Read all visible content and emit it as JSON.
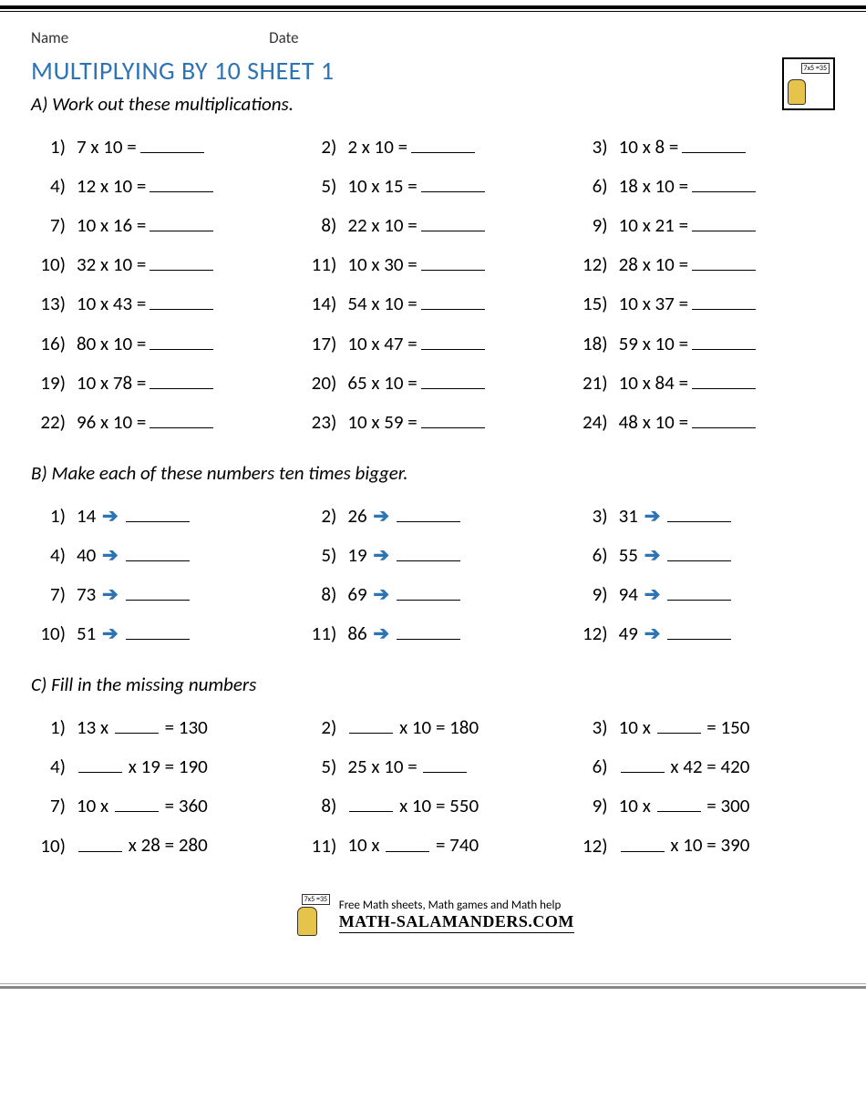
{
  "meta": {
    "name_label": "Name",
    "date_label": "Date"
  },
  "title": "MULTIPLYING BY 10 SHEET 1",
  "sectionA": {
    "instruction": "A) Work out these multiplications.",
    "items": [
      {
        "n": "1)",
        "e": "7 x 10 ="
      },
      {
        "n": "2)",
        "e": "2 x 10 ="
      },
      {
        "n": "3)",
        "e": "10 x 8 ="
      },
      {
        "n": "4)",
        "e": "12 x 10 ="
      },
      {
        "n": "5)",
        "e": "10 x 15 ="
      },
      {
        "n": "6)",
        "e": "18 x 10 ="
      },
      {
        "n": "7)",
        "e": "10 x 16 ="
      },
      {
        "n": "8)",
        "e": "22 x 10 ="
      },
      {
        "n": "9)",
        "e": "10 x 21 ="
      },
      {
        "n": "10)",
        "e": "32 x 10 ="
      },
      {
        "n": "11)",
        "e": "10 x 30 ="
      },
      {
        "n": "12)",
        "e": "28 x 10 ="
      },
      {
        "n": "13)",
        "e": "10 x 43 ="
      },
      {
        "n": "14)",
        "e": "54 x 10 ="
      },
      {
        "n": "15)",
        "e": "10 x 37 ="
      },
      {
        "n": "16)",
        "e": "80 x 10 ="
      },
      {
        "n": "17)",
        "e": "10 x 47 ="
      },
      {
        "n": "18)",
        "e": "59 x 10 ="
      },
      {
        "n": "19)",
        "e": "10 x 78 ="
      },
      {
        "n": "20)",
        "e": "65 x 10 ="
      },
      {
        "n": "21)",
        "e": "10 x 84 ="
      },
      {
        "n": "22)",
        "e": "96 x 10 ="
      },
      {
        "n": "23)",
        "e": "10 x 59 ="
      },
      {
        "n": "24)",
        "e": "48 x 10 ="
      }
    ]
  },
  "sectionB": {
    "instruction": "B) Make each of these numbers ten times bigger.",
    "items": [
      {
        "n": "1)",
        "v": "14"
      },
      {
        "n": "2)",
        "v": "26"
      },
      {
        "n": "3)",
        "v": "31"
      },
      {
        "n": "4)",
        "v": "40"
      },
      {
        "n": "5)",
        "v": "19"
      },
      {
        "n": "6)",
        "v": "55"
      },
      {
        "n": "7)",
        "v": "73"
      },
      {
        "n": "8)",
        "v": "69"
      },
      {
        "n": "9)",
        "v": "94"
      },
      {
        "n": "10)",
        "v": "51"
      },
      {
        "n": "11)",
        "v": "86"
      },
      {
        "n": "12)",
        "v": "49"
      }
    ]
  },
  "sectionC": {
    "instruction": "C) Fill in the missing numbers",
    "items": [
      {
        "n": "1)",
        "pre": "13 x ",
        "post": " = 130"
      },
      {
        "n": "2)",
        "pre": "",
        "post": " x 10 = 180"
      },
      {
        "n": "3)",
        "pre": "10 x ",
        "post": " = 150"
      },
      {
        "n": "4)",
        "pre": "",
        "post": " x 19 = 190"
      },
      {
        "n": "5)",
        "pre": "25 x 10 = ",
        "post": ""
      },
      {
        "n": "6)",
        "pre": "",
        "post": " x 42 = 420"
      },
      {
        "n": "7)",
        "pre": "10 x ",
        "post": " = 360"
      },
      {
        "n": "8)",
        "pre": "",
        "post": " x 10 = 550"
      },
      {
        "n": "9)",
        "pre": "10 x ",
        "post": " = 300"
      },
      {
        "n": "10)",
        "pre": "",
        "post": " x 28 = 280"
      },
      {
        "n": "11)",
        "pre": "10 x ",
        "post": " = 740"
      },
      {
        "n": "12)",
        "pre": "",
        "post": " x 10 = 390"
      }
    ]
  },
  "footer": {
    "tagline": "Free Math sheets, Math games and Math help",
    "brand": "MATH-SALAMANDERS.COM"
  },
  "logo_note": "7x5\n=35",
  "colors": {
    "title": "#2e74b5",
    "arrow": "#2e74b5",
    "text": "#000000",
    "rule": "#000000"
  }
}
